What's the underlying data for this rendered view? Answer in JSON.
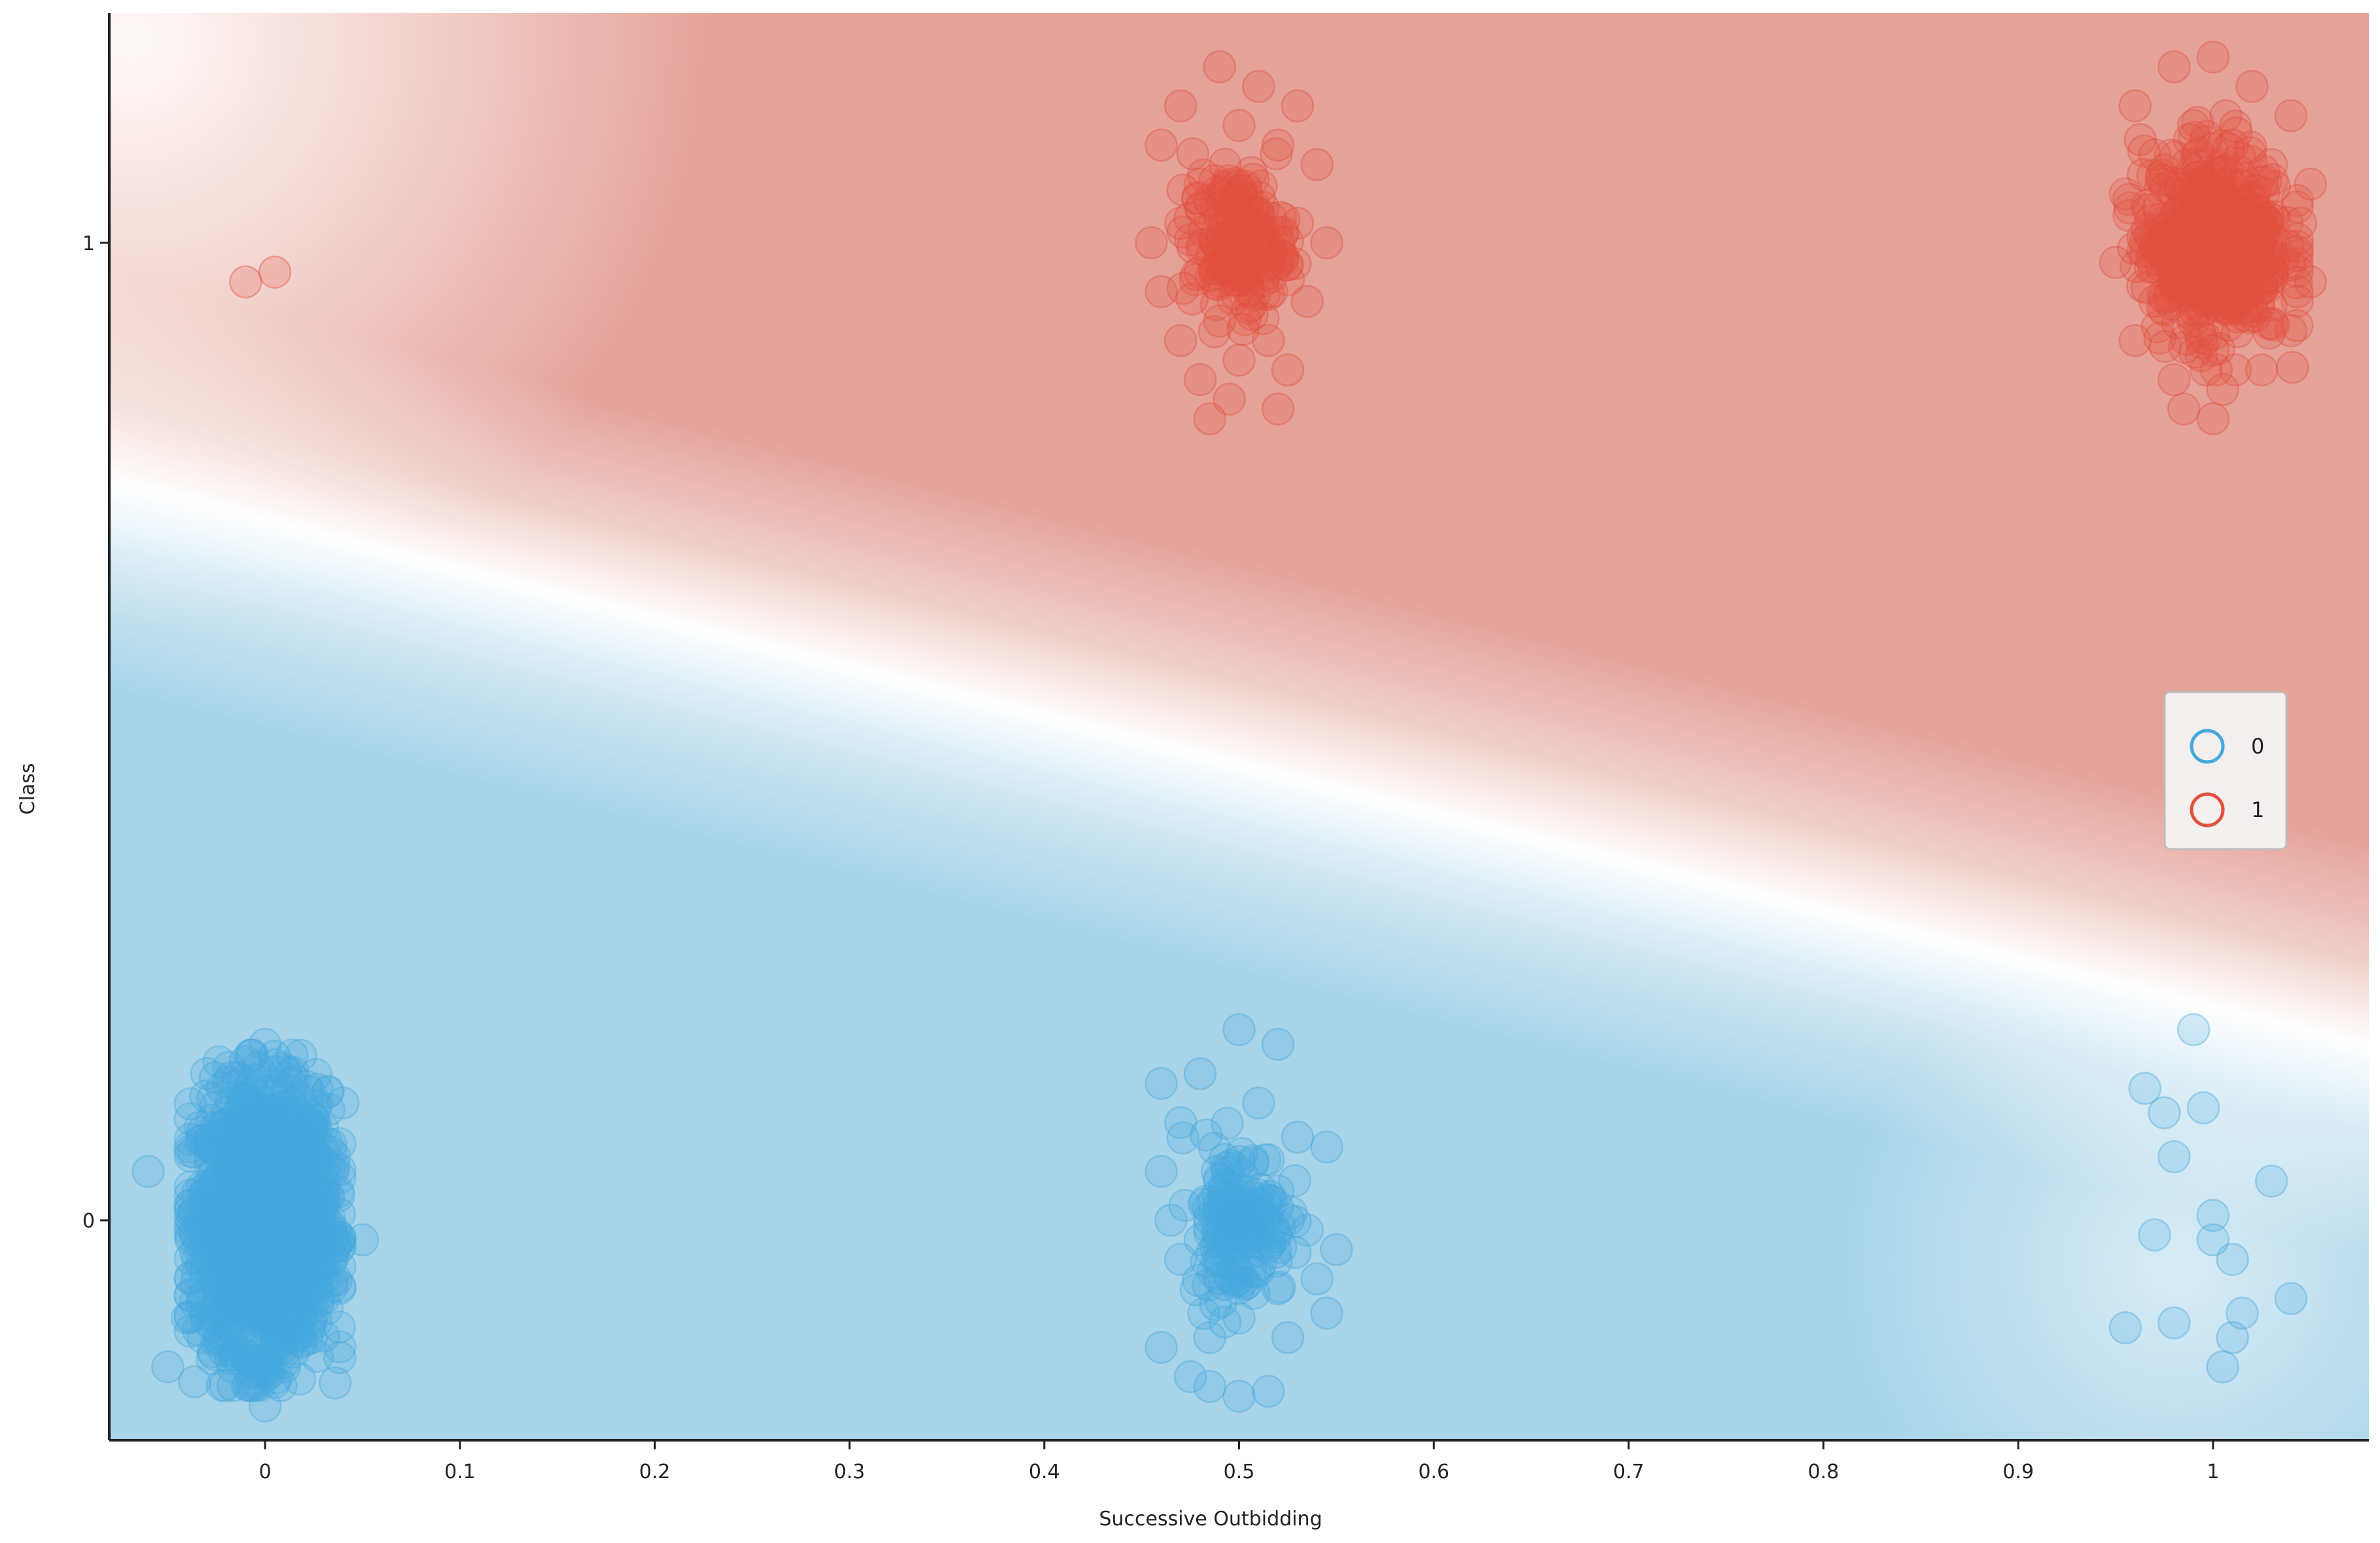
{
  "colors": {
    "class0": "#45a8dd",
    "class1": "#e2513f",
    "region0": "#a8d4ea",
    "region1": "#e5a299",
    "axis": "#222222",
    "legend_bg": "#f4f4f4",
    "legend_border": "#bdbdbd"
  },
  "chart_data": {
    "type": "scatter",
    "title": "",
    "xlabel": "Successive Outbidding",
    "ylabel": "Class",
    "xlim": [
      -0.08,
      1.08
    ],
    "ylim": [
      -0.225,
      1.235
    ],
    "x_ticks": [
      {
        "value": 0,
        "label": "0"
      },
      {
        "value": 0.1,
        "label": "0.1"
      },
      {
        "value": 0.2,
        "label": "0.2"
      },
      {
        "value": 0.3,
        "label": "0.3"
      },
      {
        "value": 0.4,
        "label": "0.4"
      },
      {
        "value": 0.5,
        "label": "0.5"
      },
      {
        "value": 0.6,
        "label": "0.6"
      },
      {
        "value": 0.7,
        "label": "0.7"
      },
      {
        "value": 0.8,
        "label": "0.8"
      },
      {
        "value": 0.9,
        "label": "0.9"
      },
      {
        "value": 1,
        "label": "1"
      }
    ],
    "y_ticks": [
      {
        "value": 0,
        "label": "0"
      },
      {
        "value": 1,
        "label": "1"
      }
    ],
    "grid": false,
    "legend": {
      "placement": "right",
      "entries": [
        {
          "label": "0",
          "color": "#45a8dd"
        },
        {
          "label": "1",
          "color": "#e2513f"
        }
      ]
    },
    "background": "probability gradient: red region for class 1 (upper), blue region for class 0 (lower), boundary line sloping downward from left to right",
    "series": [
      {
        "name": "0",
        "color": "#45a8dd",
        "points": [
          {
            "x": -0.06,
            "y": 0.05
          },
          {
            "x": -0.04,
            "y": -0.1
          },
          {
            "x": -0.03,
            "y": 0.15
          },
          {
            "x": -0.02,
            "y": -0.05
          },
          {
            "x": -0.01,
            "y": 0.1
          },
          {
            "x": 0,
            "y": 0
          },
          {
            "x": 0.01,
            "y": -0.15
          },
          {
            "x": 0.02,
            "y": 0.07
          },
          {
            "x": 0.03,
            "y": -0.08
          },
          {
            "x": 0.04,
            "y": 0.12
          },
          {
            "x": 0.05,
            "y": -0.02
          },
          {
            "x": -0.05,
            "y": -0.15
          },
          {
            "x": 0.0,
            "y": 0.18
          },
          {
            "x": 0.0,
            "y": -0.19
          },
          {
            "x": 0.5,
            "y": 0.195
          },
          {
            "x": 0.52,
            "y": 0.18
          },
          {
            "x": 0.48,
            "y": 0.15
          },
          {
            "x": 0.46,
            "y": 0.14
          },
          {
            "x": 0.51,
            "y": 0.12
          },
          {
            "x": 0.47,
            "y": 0.1
          },
          {
            "x": 0.53,
            "y": 0.085
          },
          {
            "x": 0.545,
            "y": 0.075
          },
          {
            "x": 0.46,
            "y": 0.05
          },
          {
            "x": 0.49,
            "y": 0.04
          },
          {
            "x": 0.5,
            "y": 0.02
          },
          {
            "x": 0.52,
            "y": 0.03
          },
          {
            "x": 0.465,
            "y": 0.0
          },
          {
            "x": 0.48,
            "y": -0.02
          },
          {
            "x": 0.505,
            "y": -0.01
          },
          {
            "x": 0.535,
            "y": -0.01
          },
          {
            "x": 0.55,
            "y": -0.03
          },
          {
            "x": 0.47,
            "y": -0.04
          },
          {
            "x": 0.49,
            "y": -0.06
          },
          {
            "x": 0.52,
            "y": -0.07
          },
          {
            "x": 0.54,
            "y": -0.06
          },
          {
            "x": 0.5,
            "y": -0.1
          },
          {
            "x": 0.525,
            "y": -0.12
          },
          {
            "x": 0.485,
            "y": -0.12
          },
          {
            "x": 0.545,
            "y": -0.095
          },
          {
            "x": 0.46,
            "y": -0.13
          },
          {
            "x": 0.475,
            "y": -0.16
          },
          {
            "x": 0.5,
            "y": -0.18
          },
          {
            "x": 0.515,
            "y": -0.175
          },
          {
            "x": 0.485,
            "y": -0.17
          },
          {
            "x": 0.99,
            "y": 0.195
          },
          {
            "x": 0.965,
            "y": 0.135
          },
          {
            "x": 0.995,
            "y": 0.115
          },
          {
            "x": 0.975,
            "y": 0.11
          },
          {
            "x": 0.98,
            "y": 0.065
          },
          {
            "x": 1.03,
            "y": 0.04
          },
          {
            "x": 1.0,
            "y": 0.005
          },
          {
            "x": 0.97,
            "y": -0.015
          },
          {
            "x": 1.0,
            "y": -0.02
          },
          {
            "x": 1.01,
            "y": -0.04
          },
          {
            "x": 1.04,
            "y": -0.08
          },
          {
            "x": 1.015,
            "y": -0.095
          },
          {
            "x": 0.955,
            "y": -0.11
          },
          {
            "x": 0.98,
            "y": -0.105
          },
          {
            "x": 1.01,
            "y": -0.12
          },
          {
            "x": 1.005,
            "y": -0.15
          }
        ]
      },
      {
        "name": "1",
        "color": "#e2513f",
        "points": [
          {
            "x": -0.01,
            "y": 0.96
          },
          {
            "x": 0.005,
            "y": 0.97
          },
          {
            "x": 0.49,
            "y": 1.18
          },
          {
            "x": 0.51,
            "y": 1.16
          },
          {
            "x": 0.47,
            "y": 1.14
          },
          {
            "x": 0.53,
            "y": 1.14
          },
          {
            "x": 0.5,
            "y": 1.12
          },
          {
            "x": 0.46,
            "y": 1.1
          },
          {
            "x": 0.52,
            "y": 1.1
          },
          {
            "x": 0.54,
            "y": 1.08
          },
          {
            "x": 0.48,
            "y": 1.06
          },
          {
            "x": 0.5,
            "y": 1.05
          },
          {
            "x": 0.51,
            "y": 1.03
          },
          {
            "x": 0.53,
            "y": 1.02
          },
          {
            "x": 0.47,
            "y": 1.02
          },
          {
            "x": 0.455,
            "y": 1.0
          },
          {
            "x": 0.5,
            "y": 1.0
          },
          {
            "x": 0.545,
            "y": 1.0
          },
          {
            "x": 0.52,
            "y": 0.98
          },
          {
            "x": 0.48,
            "y": 0.97
          },
          {
            "x": 0.46,
            "y": 0.95
          },
          {
            "x": 0.505,
            "y": 0.95
          },
          {
            "x": 0.535,
            "y": 0.94
          },
          {
            "x": 0.49,
            "y": 0.92
          },
          {
            "x": 0.515,
            "y": 0.9
          },
          {
            "x": 0.47,
            "y": 0.9
          },
          {
            "x": 0.5,
            "y": 0.88
          },
          {
            "x": 0.525,
            "y": 0.87
          },
          {
            "x": 0.48,
            "y": 0.86
          },
          {
            "x": 0.495,
            "y": 0.84
          },
          {
            "x": 0.52,
            "y": 0.83
          },
          {
            "x": 0.485,
            "y": 0.82
          },
          {
            "x": 0.98,
            "y": 1.18
          },
          {
            "x": 1.0,
            "y": 1.19
          },
          {
            "x": 1.02,
            "y": 1.16
          },
          {
            "x": 0.96,
            "y": 1.14
          },
          {
            "x": 1.04,
            "y": 1.13
          },
          {
            "x": 0.99,
            "y": 1.12
          },
          {
            "x": 1.01,
            "y": 1.1
          },
          {
            "x": 0.97,
            "y": 1.09
          },
          {
            "x": 1.03,
            "y": 1.08
          },
          {
            "x": 1.05,
            "y": 1.06
          },
          {
            "x": 0.955,
            "y": 1.05
          },
          {
            "x": 0.985,
            "y": 1.04
          },
          {
            "x": 1.015,
            "y": 1.03
          },
          {
            "x": 1.045,
            "y": 1.02
          },
          {
            "x": 0.965,
            "y": 1.0
          },
          {
            "x": 1.0,
            "y": 1.0
          },
          {
            "x": 1.03,
            "y": 0.99
          },
          {
            "x": 0.95,
            "y": 0.98
          },
          {
            "x": 0.98,
            "y": 0.97
          },
          {
            "x": 1.01,
            "y": 0.96
          },
          {
            "x": 1.05,
            "y": 0.96
          },
          {
            "x": 0.97,
            "y": 0.94
          },
          {
            "x": 1.02,
            "y": 0.93
          },
          {
            "x": 0.99,
            "y": 0.92
          },
          {
            "x": 1.04,
            "y": 0.91
          },
          {
            "x": 0.96,
            "y": 0.9
          },
          {
            "x": 1.0,
            "y": 0.89
          },
          {
            "x": 1.025,
            "y": 0.87
          },
          {
            "x": 0.98,
            "y": 0.86
          },
          {
            "x": 1.005,
            "y": 0.85
          },
          {
            "x": 0.985,
            "y": 0.83
          },
          {
            "x": 1.0,
            "y": 0.82
          }
        ]
      }
    ],
    "clusters": [
      {
        "series": "0",
        "x": 0,
        "y": 0,
        "sx": 0.016,
        "sy": 0.065,
        "count": 1800
      },
      {
        "series": "0",
        "x": 0.5,
        "y": 0,
        "sx": 0.012,
        "sy": 0.04,
        "count": 160
      },
      {
        "series": "1",
        "x": 0.5,
        "y": 1,
        "sx": 0.012,
        "sy": 0.035,
        "count": 180
      },
      {
        "series": "1",
        "x": 1,
        "y": 1,
        "sx": 0.018,
        "sy": 0.05,
        "count": 520
      }
    ]
  }
}
